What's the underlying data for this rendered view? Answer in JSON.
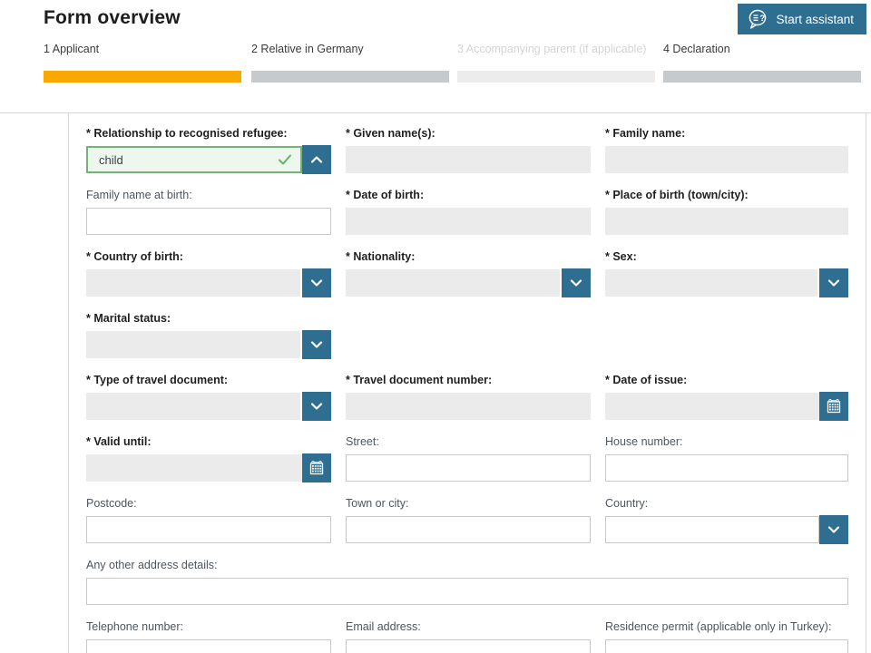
{
  "header": {
    "title": "Form overview",
    "assistant_button_label": "Start assistant",
    "assistant_icon": "speech-bubble-question-icon"
  },
  "colors": {
    "accent_blue": "#2e6e91",
    "progress_active_orange": "#f9a800",
    "progress_pending_gray": "#c6cacd",
    "progress_disabled_gray": "#ececec",
    "valid_field_green_border": "#74b277",
    "valid_field_green_bg": "#edf7ed",
    "disabled_input_gray": "#ebebeb"
  },
  "steps": [
    {
      "label": "1 Applicant",
      "state": "active"
    },
    {
      "label": "2 Relative in Germany",
      "state": "pending"
    },
    {
      "label": "3 Accompanying parent (if applicable)",
      "state": "disabled"
    },
    {
      "label": "4 Declaration",
      "state": "pending"
    }
  ],
  "form": {
    "rows": [
      {
        "cells": [
          {
            "name": "relationship-to-recognised-refugee",
            "label": "* Relationship to recognised refugee:",
            "required": true,
            "control": "combo-green",
            "value": "child",
            "icons": [
              "checkmark-icon",
              "chevron-up-icon"
            ]
          },
          {
            "name": "given-names",
            "label": "* Given name(s):",
            "required": true,
            "control": "text-gray",
            "value": ""
          },
          {
            "name": "family-name",
            "label": "* Family name:",
            "required": true,
            "control": "text-gray",
            "value": ""
          }
        ]
      },
      {
        "cells": [
          {
            "name": "family-name-at-birth",
            "label": "Family name at birth:",
            "required": false,
            "control": "text-white",
            "value": ""
          },
          {
            "name": "date-of-birth",
            "label": "* Date of birth:",
            "required": true,
            "control": "text-gray",
            "value": ""
          },
          {
            "name": "place-of-birth",
            "label": "* Place of birth (town/city):",
            "required": true,
            "control": "text-gray",
            "value": ""
          }
        ]
      },
      {
        "cells": [
          {
            "name": "country-of-birth",
            "label": "* Country of birth:",
            "required": true,
            "control": "select-gray",
            "value": "",
            "icons": [
              "chevron-down-icon"
            ]
          },
          {
            "name": "nationality",
            "label": "* Nationality:",
            "required": true,
            "control": "select-gray",
            "value": "",
            "icons": [
              "chevron-down-icon"
            ]
          },
          {
            "name": "sex",
            "label": "* Sex:",
            "required": true,
            "control": "select-gray",
            "value": "",
            "icons": [
              "chevron-down-icon"
            ]
          }
        ]
      },
      {
        "cells": [
          {
            "name": "marital-status",
            "label": "* Marital status:",
            "required": true,
            "control": "select-gray",
            "value": "",
            "icons": [
              "chevron-down-icon"
            ]
          }
        ]
      },
      {
        "cells": [
          {
            "name": "type-of-travel-document",
            "label": "* Type of travel document:",
            "required": true,
            "control": "select-gray",
            "value": "",
            "icons": [
              "chevron-down-icon"
            ]
          },
          {
            "name": "travel-document-number",
            "label": "* Travel document number:",
            "required": true,
            "control": "text-gray",
            "value": ""
          },
          {
            "name": "date-of-issue",
            "label": "* Date of issue:",
            "required": true,
            "control": "date-gray",
            "value": "",
            "icons": [
              "calendar-icon"
            ]
          }
        ]
      },
      {
        "cells": [
          {
            "name": "valid-until",
            "label": "* Valid until:",
            "required": true,
            "control": "date-gray",
            "value": "",
            "icons": [
              "calendar-icon"
            ]
          },
          {
            "name": "street",
            "label": "Street:",
            "required": false,
            "control": "text-white",
            "value": ""
          },
          {
            "name": "house-number",
            "label": "House number:",
            "required": false,
            "control": "text-white",
            "value": ""
          }
        ]
      },
      {
        "cells": [
          {
            "name": "postcode",
            "label": "Postcode:",
            "required": false,
            "control": "text-white",
            "value": ""
          },
          {
            "name": "town-or-city",
            "label": "Town or city:",
            "required": false,
            "control": "text-white",
            "value": ""
          },
          {
            "name": "country",
            "label": "Country:",
            "required": false,
            "control": "select-white",
            "value": "",
            "icons": [
              "chevron-down-icon"
            ]
          }
        ]
      },
      {
        "cells": [
          {
            "name": "any-other-address-details",
            "label": "Any other address details:",
            "required": false,
            "control": "text-white",
            "value": "",
            "span": 3
          }
        ]
      },
      {
        "cells": [
          {
            "name": "telephone-number",
            "label": "Telephone number:",
            "required": false,
            "control": "text-white",
            "value": ""
          },
          {
            "name": "email-address",
            "label": "Email address:",
            "required": false,
            "control": "text-white",
            "value": ""
          },
          {
            "name": "residence-permit",
            "label": "Residence permit (applicable only in Turkey):",
            "required": false,
            "control": "text-white",
            "value": ""
          }
        ]
      }
    ]
  }
}
